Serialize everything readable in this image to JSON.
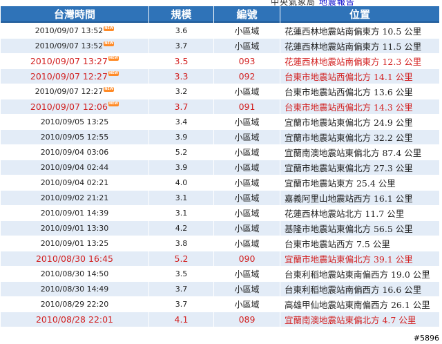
{
  "top_fragment": {
    "text": "中央氣象局",
    "link": "地震報告"
  },
  "columns": {
    "time": "台灣時間",
    "magnitude": "規模",
    "number": "編號",
    "location": "位置"
  },
  "rows": [
    {
      "time": "2010/09/07 13:52",
      "new": true,
      "mag": "3.6",
      "num": "小區域",
      "loc": "花蓮西林地震站南偏東方 10.5 公里",
      "highlight": false
    },
    {
      "time": "2010/09/07 13:52",
      "new": true,
      "mag": "3.7",
      "num": "小區域",
      "loc": "花蓮西林地震站南偏東方 11.5 公里",
      "highlight": false
    },
    {
      "time": "2010/09/07 13:27",
      "new": true,
      "mag": "3.5",
      "num": "093",
      "loc": "花蓮西林地震站南偏東方 12.3 公里",
      "highlight": true
    },
    {
      "time": "2010/09/07 12:27",
      "new": true,
      "mag": "3.3",
      "num": "092",
      "loc": "台東市地震站西偏北方 14.1 公里",
      "highlight": true
    },
    {
      "time": "2010/09/07 12:27",
      "new": true,
      "mag": "3.2",
      "num": "小區域",
      "loc": "台東市地震站西偏北方 13.6 公里",
      "highlight": false
    },
    {
      "time": "2010/09/07 12:06",
      "new": true,
      "mag": "3.7",
      "num": "091",
      "loc": "台東市地震站西偏北方 14.3 公里",
      "highlight": true
    },
    {
      "time": "2010/09/05 13:25",
      "new": false,
      "mag": "3.4",
      "num": "小區域",
      "loc": "宜蘭市地震站東偏北方 24.9 公里",
      "highlight": false
    },
    {
      "time": "2010/09/05 12:55",
      "new": false,
      "mag": "3.9",
      "num": "小區域",
      "loc": "宜蘭市地震站東偏北方 32.2 公里",
      "highlight": false
    },
    {
      "time": "2010/09/04 03:06",
      "new": false,
      "mag": "5.2",
      "num": "小區域",
      "loc": "宜蘭南澳地震站東偏北方 87.4 公里",
      "highlight": false
    },
    {
      "time": "2010/09/04 02:44",
      "new": false,
      "mag": "3.9",
      "num": "小區域",
      "loc": "宜蘭市地震站東偏北方 27.3 公里",
      "highlight": false
    },
    {
      "time": "2010/09/04 02:21",
      "new": false,
      "mag": "4.0",
      "num": "小區域",
      "loc": "宜蘭市地震站東方 25.4 公里",
      "highlight": false
    },
    {
      "time": "2010/09/02 21:21",
      "new": false,
      "mag": "3.1",
      "num": "小區域",
      "loc": "嘉義阿里山地震站西方 16.1 公里",
      "highlight": false
    },
    {
      "time": "2010/09/01 14:39",
      "new": false,
      "mag": "3.1",
      "num": "小區域",
      "loc": "花蓮西林地震站北方 11.7 公里",
      "highlight": false
    },
    {
      "time": "2010/09/01 13:30",
      "new": false,
      "mag": "4.2",
      "num": "小區域",
      "loc": "基隆市地震站東偏北方 56.5 公里",
      "highlight": false
    },
    {
      "time": "2010/09/01 13:25",
      "new": false,
      "mag": "3.8",
      "num": "小區域",
      "loc": "台東市地震站西方 7.5 公里",
      "highlight": false
    },
    {
      "time": "2010/08/30 16:45",
      "new": false,
      "mag": "5.2",
      "num": "090",
      "loc": "宜蘭市地震站東偏北方 39.1 公里",
      "highlight": true
    },
    {
      "time": "2010/08/30 14:50",
      "new": false,
      "mag": "3.5",
      "num": "小區域",
      "loc": "台東利稻地震站東南偏西方 19.0 公里",
      "highlight": false
    },
    {
      "time": "2010/08/30 14:49",
      "new": false,
      "mag": "3.7",
      "num": "小區域",
      "loc": "台東利稻地震站南偏西方 16.6 公里",
      "highlight": false
    },
    {
      "time": "2010/08/29 22:20",
      "new": false,
      "mag": "3.7",
      "num": "小區域",
      "loc": "高雄甲仙地震站東南偏西方 26.1 公里",
      "highlight": false
    },
    {
      "time": "2010/08/28 22:01",
      "new": false,
      "mag": "4.1",
      "num": "089",
      "loc": "宜蘭南澳地震站東偏北方 4.7 公里",
      "highlight": true
    }
  ],
  "badge_text": "NEW",
  "watermark": "#5896",
  "colors": {
    "header_bg": "#2f73b8",
    "row_alt": "#e3ecf7",
    "highlight_text": "#d21f1f"
  }
}
